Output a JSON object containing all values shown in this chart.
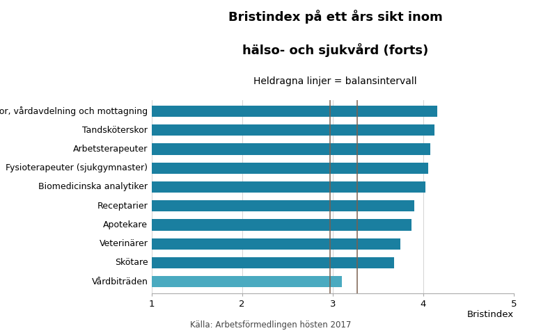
{
  "title_line1": "Bristindex på ett års sikt inom",
  "title_line2": "hälso- och sjukvård (forts)",
  "subtitle": "Heldragna linjer = balansintervall",
  "xlabel": "Bristindex",
  "source": "Källa: Arbetsförmedlingen hösten 2017",
  "categories": [
    "Undersköterskor, vårdavdelning och mottagning",
    "Tandsköterskor",
    "Arbetsterapeuter",
    "Fysioterapeuter (sjukgymnaster)",
    "Biomedicinska analytiker",
    "Receptarier",
    "Apotekare",
    "Veterinärer",
    "Skötare",
    "Vårdbiträden"
  ],
  "values": [
    4.15,
    4.12,
    4.08,
    4.05,
    4.02,
    3.9,
    3.87,
    3.75,
    3.68,
    3.1
  ],
  "bar_colors": [
    "#1a7fa0",
    "#1a7fa0",
    "#1a7fa0",
    "#1a7fa0",
    "#1a7fa0",
    "#1a7fa0",
    "#1a7fa0",
    "#1a7fa0",
    "#1a7fa0",
    "#4aaac0"
  ],
  "xlim": [
    1,
    5
  ],
  "xticks": [
    1,
    2,
    3,
    4,
    5
  ],
  "balance_lines": [
    2.97,
    3.27
  ],
  "balance_line_color": "#7a6050",
  "background_color": "#ffffff",
  "title_fontsize": 13,
  "subtitle_fontsize": 10,
  "label_fontsize": 9,
  "tick_fontsize": 9.5,
  "source_fontsize": 8.5
}
